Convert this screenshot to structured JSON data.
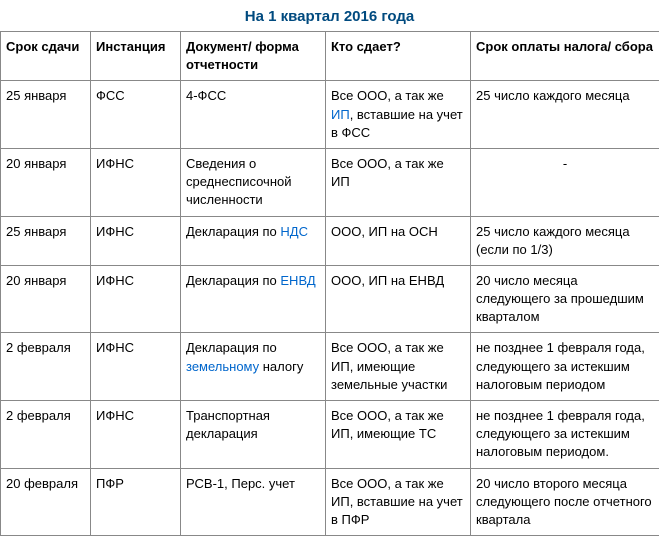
{
  "title": "На 1 квартал 2016 года",
  "headers": {
    "c1": "Срок сдачи",
    "c2": "Инстанция",
    "c3": "Документ/ форма отчетности",
    "c4": "Кто сдает?",
    "c5": "Срок оплаты налога/ сбора"
  },
  "rows": [
    {
      "c1": "25 января",
      "c2": "ФСС",
      "c3_text": "4-ФСС",
      "c4_pre": "Все ООО, а так же ",
      "c4_link": "ИП",
      "c4_post": ", вставшие на учет в ФСС",
      "c5": "25 число каждого месяца"
    },
    {
      "c1": "20 января",
      "c2": "ИФНС",
      "c3_text": "Сведения о среднесписочной численности",
      "c4_text": "Все ООО, а так же ИП",
      "c5": "-",
      "c5_center": true
    },
    {
      "c1": "25 января",
      "c2": "ИФНС",
      "c3_pre": "Декларация по ",
      "c3_link": "НДС",
      "c4_text": "ООО, ИП на ОСН",
      "c5": "25 число каждого месяца (если по 1/3)"
    },
    {
      "c1": "20 января",
      "c2": "ИФНС",
      "c3_pre": "Декларация по ",
      "c3_link": "ЕНВД",
      "c4_text": "ООО, ИП на ЕНВД",
      "c5": "20 число месяца следующего за прошедшим кварталом"
    },
    {
      "c1": "2 февраля",
      "c2": "ИФНС",
      "c3_pre": "Декларация по ",
      "c3_link": "земельному",
      "c3_post": " налогу",
      "c4_text": "Все ООО, а так же ИП, имеющие земельные участки",
      "c5": "не позднее 1 февраля года, следующего за истекшим налоговым периодом"
    },
    {
      "c1": "2 февраля",
      "c2": "ИФНС",
      "c3_text": "Транспортная декларация",
      "c4_text": "Все ООО, а так же ИП, имеющие ТС",
      "c5": "не позднее 1 февраля года, следующего за истекшим налоговым периодом."
    },
    {
      "c1": "20 февраля",
      "c2": "ПФР",
      "c3_text": "РСВ-1, Перс. учет",
      "c4_text": "Все ООО, а так же ИП, вставшие на учет в ПФР",
      "c5": "20 число второго месяца следующего после отчетного квартала"
    }
  ]
}
